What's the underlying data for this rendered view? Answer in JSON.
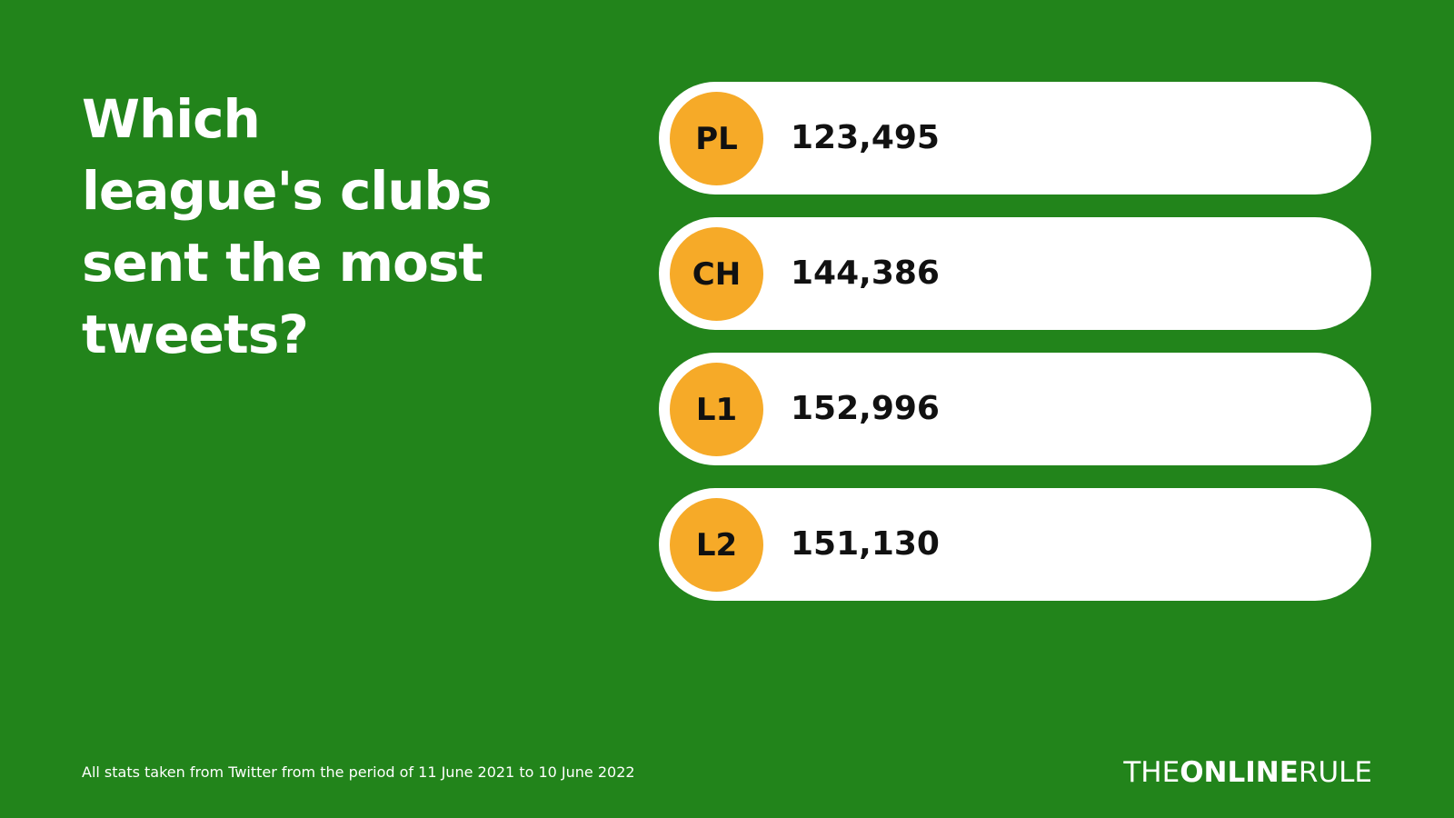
{
  "title_lines": [
    "Which",
    "league's clubs",
    "sent the most",
    "tweets?"
  ],
  "items": [
    {
      "label": "PL",
      "value": "123,495"
    },
    {
      "label": "CH",
      "value": "144,386"
    },
    {
      "label": "L1",
      "value": "152,996"
    },
    {
      "label": "L2",
      "value": "151,130"
    }
  ],
  "footnote": "All stats taken from Twitter from the period of 11 June 2021 to 10 June 2022",
  "brand": {
    "part1": "THE",
    "part2": "ONLINE",
    "part3": "RULE"
  }
}
